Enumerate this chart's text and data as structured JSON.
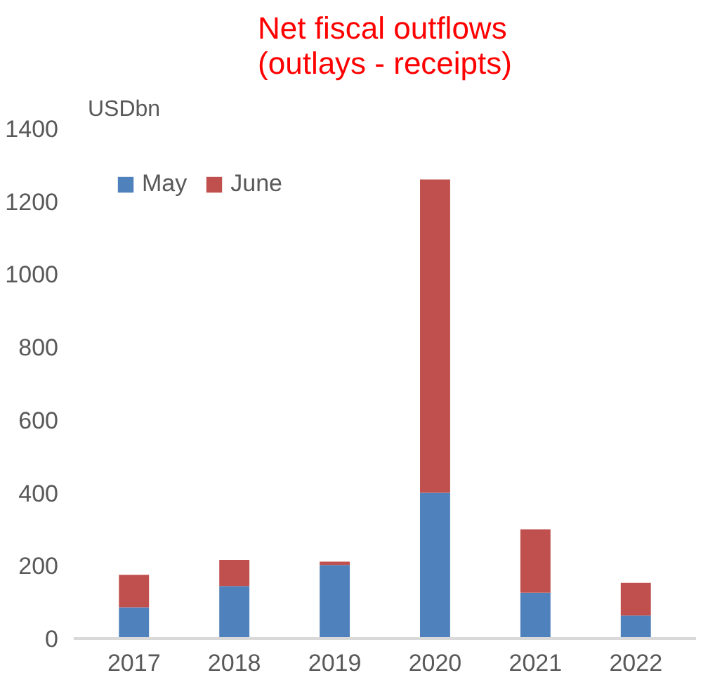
{
  "chart_data": {
    "type": "bar",
    "title": "Net fiscal outflows\n(outlays - receipts)",
    "ylabel": "USDbn",
    "categories": [
      "2017",
      "2018",
      "2019",
      "2020",
      "2021",
      "2022"
    ],
    "stacked": true,
    "series": [
      {
        "name": "May",
        "color": "#4f81bd",
        "values": [
          86,
          144,
          202,
          400,
          126,
          63
        ]
      },
      {
        "name": "June",
        "color": "#c0504d",
        "values": [
          89,
          72,
          9,
          860,
          174,
          90
        ]
      }
    ],
    "ylim": [
      0,
      1400
    ],
    "yticks": [
      0,
      200,
      400,
      600,
      800,
      1000,
      1200,
      1400
    ],
    "grid": false,
    "legend": "top left"
  }
}
